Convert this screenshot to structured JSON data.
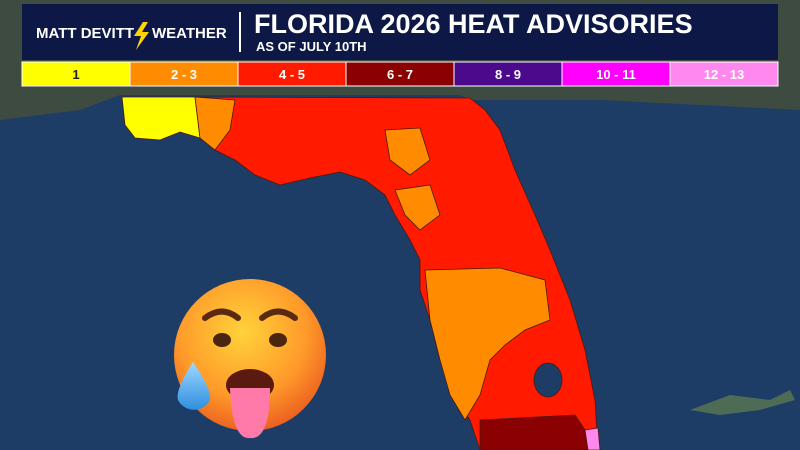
{
  "header": {
    "brand_left": "MATT DEVITT",
    "brand_right": "WEATHER",
    "title": "FLORIDA 2026 HEAT ADVISORIES",
    "subtitle": "AS OF JULY 10TH"
  },
  "legend": {
    "items": [
      {
        "label": "1",
        "color": "#ffff00"
      },
      {
        "label": "2 - 3",
        "color": "#ff8c00"
      },
      {
        "label": "4 - 5",
        "color": "#ff1a00"
      },
      {
        "label": "6 - 7",
        "color": "#8b0000"
      },
      {
        "label": "8 - 9",
        "color": "#4b0a8c"
      },
      {
        "label": "10 - 11",
        "color": "#ff00ff"
      },
      {
        "label": "12 - 13",
        "color": "#ff88ee"
      }
    ]
  }
}
